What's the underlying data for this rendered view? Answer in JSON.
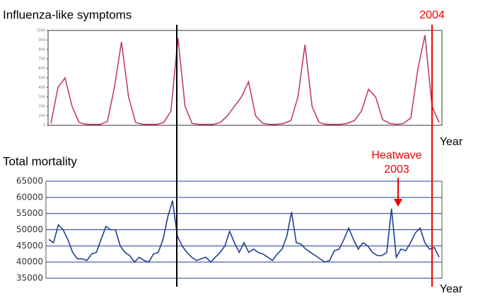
{
  "chart_data": [
    {
      "type": "line",
      "title": "Influenza-like symptoms",
      "color": "#c2405e",
      "values": [
        20,
        400,
        500,
        200,
        30,
        10,
        10,
        10,
        40,
        400,
        880,
        300,
        30,
        10,
        10,
        10,
        30,
        150,
        920,
        200,
        20,
        10,
        10,
        10,
        30,
        100,
        200,
        300,
        460,
        100,
        20,
        10,
        10,
        20,
        50,
        300,
        850,
        200,
        30,
        10,
        10,
        10,
        20,
        50,
        150,
        380,
        300,
        60,
        20,
        10,
        20,
        80,
        600,
        950,
        200,
        30
      ],
      "ylim": [
        0,
        1000
      ],
      "yticks": [
        0,
        100,
        200,
        300,
        400,
        500,
        600,
        700,
        800,
        900,
        1000
      ],
      "grid": false,
      "annotations": [
        "2004",
        "Year"
      ]
    },
    {
      "type": "line",
      "title": "Total mortality",
      "color": "#1f3f8f",
      "values": [
        47000,
        46000,
        51500,
        50000,
        47000,
        43000,
        41000,
        41000,
        40500,
        42500,
        43000,
        47000,
        51000,
        50000,
        50000,
        45000,
        43000,
        42000,
        40000,
        41500,
        40500,
        40000,
        42500,
        43000,
        47000,
        54000,
        59000,
        48000,
        45000,
        43000,
        41500,
        40500,
        41000,
        41500,
        40000,
        41500,
        43000,
        45000,
        49500,
        46000,
        43000,
        46000,
        43000,
        44000,
        43000,
        42500,
        41500,
        40500,
        42500,
        44000,
        48000,
        55500,
        46000,
        45500,
        44000,
        43000,
        42000,
        41000,
        40000,
        40500,
        43500,
        44000,
        47000,
        50500,
        47000,
        44000,
        46000,
        45000,
        43000,
        42000,
        42000,
        43000,
        56500,
        41500,
        44000,
        43500,
        46000,
        49000,
        50500,
        46000,
        44000,
        44500,
        41500
      ],
      "ylim": [
        35000,
        65000
      ],
      "yticks": [
        35000,
        40000,
        45000,
        50000,
        55000,
        60000,
        65000
      ],
      "grid": true,
      "annotations": [
        "Heatwave",
        "2003",
        "Year"
      ]
    }
  ]
}
